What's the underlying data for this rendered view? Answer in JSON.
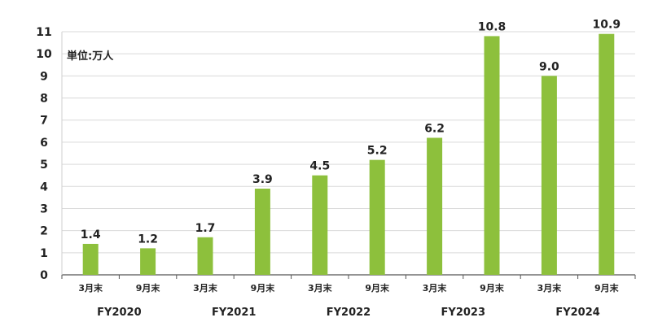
{
  "chart_data": {
    "type": "bar",
    "unit_label": "単位:万人",
    "categories": [
      "3月末",
      "9月末",
      "3月末",
      "9月末",
      "3月末",
      "9月末",
      "3月末",
      "9月末",
      "3月末",
      "9月末"
    ],
    "groups": [
      "FY2020",
      "FY2021",
      "FY2022",
      "FY2023",
      "FY2024"
    ],
    "values": [
      1.4,
      1.2,
      1.7,
      3.9,
      4.5,
      5.2,
      6.2,
      10.8,
      9.0,
      10.9
    ],
    "value_labels": [
      "1.4",
      "1.2",
      "1.7",
      "3.9",
      "4.5",
      "5.2",
      "6.2",
      "10.8",
      "9.0",
      "10.9"
    ],
    "y_ticks": [
      "0",
      "1",
      "2",
      "3",
      "4",
      "5",
      "6",
      "7",
      "8",
      "9",
      "10",
      "11"
    ],
    "ylim": [
      0,
      11
    ],
    "bar_color": "#8dc03c",
    "grid": true
  }
}
